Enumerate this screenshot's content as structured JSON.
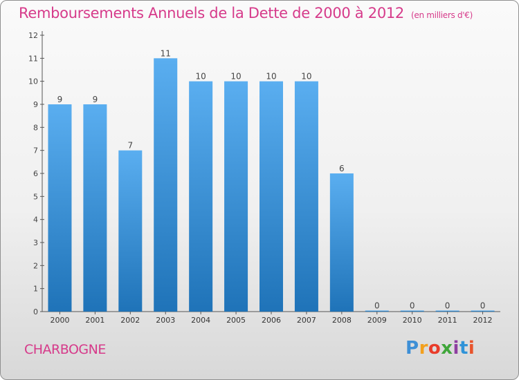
{
  "chart_data": {
    "type": "bar",
    "title": "Remboursements Annuels de la Dette de 2000 à 2012",
    "unit": "(en milliers d'€)",
    "categories": [
      "2000",
      "2001",
      "2002",
      "2003",
      "2004",
      "2005",
      "2006",
      "2007",
      "2008",
      "2009",
      "2010",
      "2011",
      "2012"
    ],
    "values": [
      9,
      9,
      7,
      11,
      10,
      10,
      10,
      10,
      6,
      0,
      0,
      0,
      0
    ],
    "ylim": [
      0,
      12
    ],
    "yticks": [
      0,
      1,
      2,
      3,
      4,
      5,
      6,
      7,
      8,
      9,
      10,
      11,
      12
    ],
    "grid": false,
    "xlabel": "",
    "ylabel": "",
    "bar_color": "#2b82c9"
  },
  "commune": "CHARBOGNE",
  "brand": {
    "letters": [
      "P",
      "r",
      "o",
      "x",
      "i",
      "t",
      "i"
    ],
    "colors": [
      "#3d8fd6",
      "#f2a01e",
      "#e93c2a",
      "#3fa63a",
      "#8e3fa0",
      "#2f93d8",
      "#e8542c"
    ]
  },
  "colors": {
    "title": "#d63a8a",
    "axis": "#555555"
  }
}
